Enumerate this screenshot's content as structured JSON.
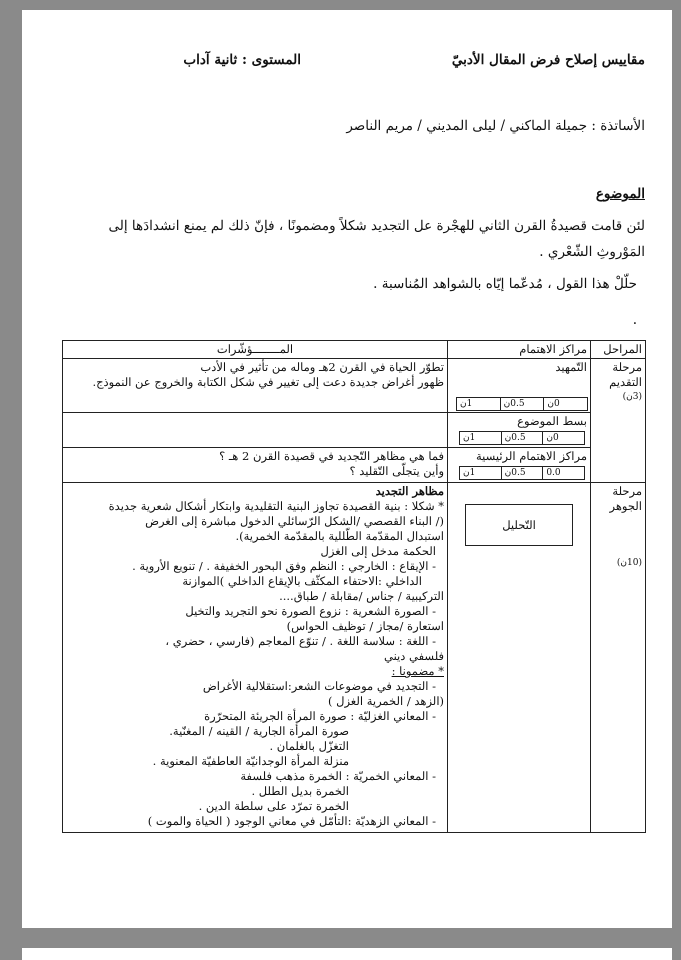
{
  "header": {
    "title": "مقاييس إصلاح فرض المقال الأدبيّ",
    "level": "المستوى : ثانية آداب",
    "teachers": "الأساتذة : جميلة الماكني / ليلى المديني / مريم الناصر"
  },
  "subject": {
    "heading": "الموضوع",
    "line1": "لئن قامت قصيدةُ القرن الثاني للهجْرة عل التجديد شكلاً ومضمونًا ، فإنّ ذلك لم يمنع انشدادَها إلى",
    "line2": "المَوْروثِ الشّعْري .",
    "instruction": "حلّلْ هذا القول ، مُدعّما إيّاه بالشواهد المُناسبة .",
    "dot": "."
  },
  "table": {
    "headers": {
      "stages": "المراحل",
      "focus": "مراكز الاهتمام",
      "indicators": "المــــــــؤشّرات"
    },
    "intro": {
      "stage": "مرحلة التقديم",
      "points": "(3ن)",
      "rows": [
        {
          "focus": "التّمهيد",
          "indicators": [
            "تطوّر الحياة في القرن 2هـ وماله من تأثير في الأدب",
            "ظهور أغراض جديدة دعت إلى تغيير في شكل الكتابة والخروج عن النموذج."
          ],
          "scores": [
            "0ن",
            "0.5ن",
            "1ن"
          ]
        },
        {
          "focus": "بسط الموضوع",
          "indicators": [],
          "scores": [
            "0ن",
            "0.5ن",
            "1ن"
          ]
        },
        {
          "focus": "مراكز الاهتمام الرئيسية",
          "indicators": [
            "فما هي مظاهر التّجديد في قصيدة القرن 2 هـ ؟",
            "وأين يتجلّى التّقليد ؟"
          ],
          "scores": [
            "0.0",
            "0.5ن",
            "1ن"
          ]
        }
      ]
    },
    "body": {
      "stage": "مرحلة الجوهر",
      "points": "(10ن)",
      "focus": "التّحليل",
      "lines": [
        {
          "text": "مظاهر التجديد",
          "style": "b l0"
        },
        {
          "text": "* شكلا : بنية القصيدة تجاوز البنية التقليدية وابتكار أشكال شعرية جديدة",
          "style": "l0"
        },
        {
          "text": "(/ البناء القصصي /الشكل الرّسائلي الدخول مباشرة إلى الغرض",
          "style": "l0"
        },
        {
          "text": "استبدال المقدّمة الطّللية بالمقدّمة الخمرية).",
          "style": "l0"
        },
        {
          "text": "الحكمة مدخل إلى الغزل",
          "style": "l1"
        },
        {
          "text": "- الإيقاع : الخارجي : النظم وفق البحور الخفيفة . / تنويع الأروية .",
          "style": "l1"
        },
        {
          "text": "الداخلي :الاحتفاء المكثّف بالإيقاع الداخلي )الموازنة",
          "style": "l2"
        },
        {
          "text": "التركيبية / جناس /مقابلة / طباق....",
          "style": "l0"
        },
        {
          "text": "- الصورة الشعرية : نزوع الصورة نحو التجريد والتخيل",
          "style": "l1"
        },
        {
          "text": "استعارة /مجاز / توظيف الحواس)",
          "style": "l0"
        },
        {
          "text": "- اللغة : سلاسة اللغة . / تنوّع المعاجم (فارسي ، حضري ،",
          "style": "l1"
        },
        {
          "text": "فلسفي ديني",
          "style": "l0"
        },
        {
          "text": "* مضمونا :",
          "style": "u l0"
        },
        {
          "text": "- التجديد في موضوعات الشعر:استقلالية الأغراض",
          "style": "l1"
        },
        {
          "text": "(الزهد / الخمرية الغزل )",
          "style": "l0"
        },
        {
          "text": "- المعاني الغزليّة : صورة المرأة الجريئة المتحرّرة",
          "style": "l1"
        },
        {
          "text": "صورة المرأة الجارية / القينه / المغنّية.",
          "style": "l4"
        },
        {
          "text": "التغزّل بالغلمان .",
          "style": "l4"
        },
        {
          "text": "منزلة المرأة الوجدانيّة العاطفيّة المعنوية .",
          "style": "l4"
        },
        {
          "text": "- المعاني الخمريّة : الخمرة مذهب فلسفة",
          "style": "l1"
        },
        {
          "text": "الخمرة بديل الطلل .",
          "style": "l4"
        },
        {
          "text": "الخمرة تمرّد على سلطة الدين .",
          "style": "l4"
        },
        {
          "text": "- المعاني الزهديّة :التأمّل في معاني الوجود ( الحياة والموت )",
          "style": "l1"
        }
      ]
    }
  }
}
